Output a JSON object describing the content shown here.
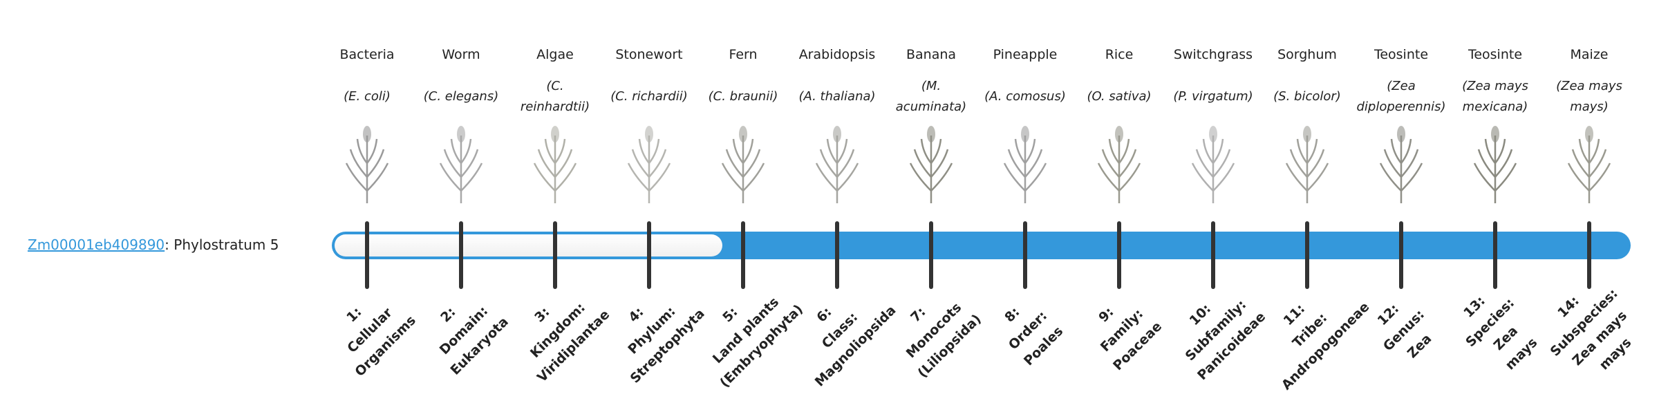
{
  "gene": {
    "id": "Zm00001eb409890",
    "separator": ":",
    "text": " Phylostratum 5",
    "phylostratum": 5,
    "total_strata": 14
  },
  "colors": {
    "accent": "#3498db",
    "tick": "#333333"
  },
  "organisms": [
    {
      "common": "Bacteria",
      "latin": "(E. coli)",
      "icon": "bacteria-image",
      "rank": [
        "1:",
        "Cellular",
        "Organisms"
      ]
    },
    {
      "common": "Worm",
      "latin": "(C. elegans)",
      "icon": "worm-image",
      "rank": [
        "2:",
        "Domain:",
        "Eukaryota"
      ]
    },
    {
      "common": "Algae",
      "latin": "(C. reinhardtii)",
      "icon": "algae-image",
      "rank": [
        "3:",
        "Kingdom:",
        "Viridiplantae"
      ]
    },
    {
      "common": "Stonewort",
      "latin": "(C. richardii)",
      "icon": "stonewort-image",
      "rank": [
        "4:",
        "Phylum:",
        "Streptophyta"
      ]
    },
    {
      "common": "Fern",
      "latin": "(C. braunii)",
      "icon": "fern-image",
      "rank": [
        "5:",
        "Land plants",
        "(Embryophyta)"
      ]
    },
    {
      "common": "Arabidopsis",
      "latin": "(A. thaliana)",
      "icon": "arabidopsis-image",
      "rank": [
        "6:",
        "Class:",
        "Magnoliopsida"
      ]
    },
    {
      "common": "Banana",
      "latin": "(M. acuminata)",
      "icon": "banana-image",
      "rank": [
        "7:",
        "Monocots",
        "(Liliopsida)"
      ]
    },
    {
      "common": "Pineapple",
      "latin": "(A. comosus)",
      "icon": "pineapple-image",
      "rank": [
        "8:",
        "Order:",
        "Poales"
      ]
    },
    {
      "common": "Rice",
      "latin": "(O. sativa)",
      "icon": "rice-image",
      "rank": [
        "9:",
        "Family:",
        "Poaceae"
      ]
    },
    {
      "common": "Switchgrass",
      "latin": "(P. virgatum)",
      "icon": "switchgrass-image",
      "rank": [
        "10:",
        "Subfamily:",
        "Panicoideae"
      ]
    },
    {
      "common": "Sorghum",
      "latin": "(S. bicolor)",
      "icon": "sorghum-image",
      "rank": [
        "11:",
        "Tribe:",
        "Andropogoneae"
      ]
    },
    {
      "common": "Teosinte",
      "latin": "(Zea diploperennis)",
      "icon": "teosinte-image",
      "rank": [
        "12:",
        "Genus:",
        "Zea"
      ]
    },
    {
      "common": "Teosinte",
      "latin": "(Zea mays mexicana)",
      "icon": "teosinte-mexicana-image",
      "rank": [
        "13:",
        "Species:",
        "Zea",
        "mays"
      ]
    },
    {
      "common": "Maize",
      "latin": "(Zea mays mays)",
      "icon": "maize-image",
      "rank": [
        "14:",
        "Subspecies:",
        "Zea mays",
        "mays"
      ]
    }
  ]
}
